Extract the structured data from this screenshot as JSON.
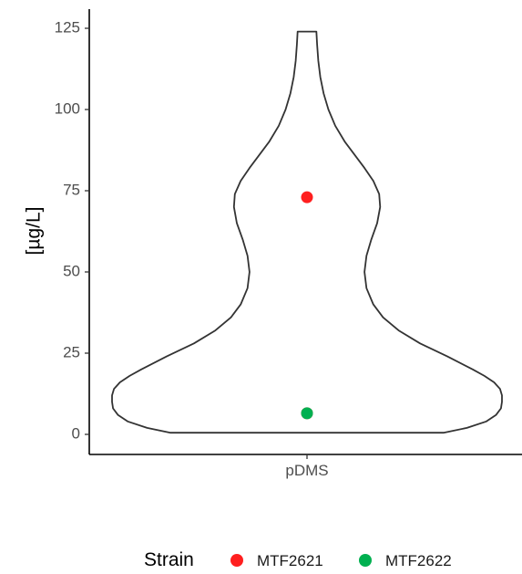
{
  "chart_data": {
    "type": "violin",
    "xlabel": "",
    "ylabel": "[µg/L]",
    "categories": [
      "pDMS"
    ],
    "ylim": [
      0,
      125
    ],
    "yticks": [
      0,
      25,
      50,
      75,
      100,
      125
    ],
    "grid": false,
    "violin": {
      "category": "pDMS",
      "profile": [
        {
          "y": 0.5,
          "w": 0.7
        },
        {
          "y": 2,
          "w": 0.82
        },
        {
          "y": 4,
          "w": 0.92
        },
        {
          "y": 6,
          "w": 0.97
        },
        {
          "y": 8,
          "w": 0.995
        },
        {
          "y": 10,
          "w": 1.0
        },
        {
          "y": 12,
          "w": 1.0
        },
        {
          "y": 14,
          "w": 0.99
        },
        {
          "y": 16,
          "w": 0.96
        },
        {
          "y": 18,
          "w": 0.91
        },
        {
          "y": 20,
          "w": 0.85
        },
        {
          "y": 24,
          "w": 0.72
        },
        {
          "y": 28,
          "w": 0.58
        },
        {
          "y": 32,
          "w": 0.47
        },
        {
          "y": 36,
          "w": 0.39
        },
        {
          "y": 40,
          "w": 0.34
        },
        {
          "y": 45,
          "w": 0.305
        },
        {
          "y": 50,
          "w": 0.295
        },
        {
          "y": 55,
          "w": 0.305
        },
        {
          "y": 60,
          "w": 0.33
        },
        {
          "y": 65,
          "w": 0.36
        },
        {
          "y": 70,
          "w": 0.375
        },
        {
          "y": 74,
          "w": 0.37
        },
        {
          "y": 78,
          "w": 0.34
        },
        {
          "y": 82,
          "w": 0.295
        },
        {
          "y": 86,
          "w": 0.245
        },
        {
          "y": 90,
          "w": 0.195
        },
        {
          "y": 95,
          "w": 0.145
        },
        {
          "y": 100,
          "w": 0.11
        },
        {
          "y": 105,
          "w": 0.085
        },
        {
          "y": 110,
          "w": 0.068
        },
        {
          "y": 115,
          "w": 0.058
        },
        {
          "y": 120,
          "w": 0.052
        },
        {
          "y": 124,
          "w": 0.048
        }
      ]
    },
    "points": [
      {
        "strain": "MTF2621",
        "x": "pDMS",
        "y": 73
      },
      {
        "strain": "MTF2621",
        "x": "pDMS",
        "y": 6.5
      },
      {
        "strain": "MTF2622",
        "x": "pDMS",
        "y": 6.5
      }
    ],
    "legend": {
      "title": "Strain",
      "position": "bottom",
      "items": [
        {
          "label": "MTF2621",
          "color": "#ff1f1f"
        },
        {
          "label": "MTF2622",
          "color": "#00b050"
        }
      ]
    }
  }
}
